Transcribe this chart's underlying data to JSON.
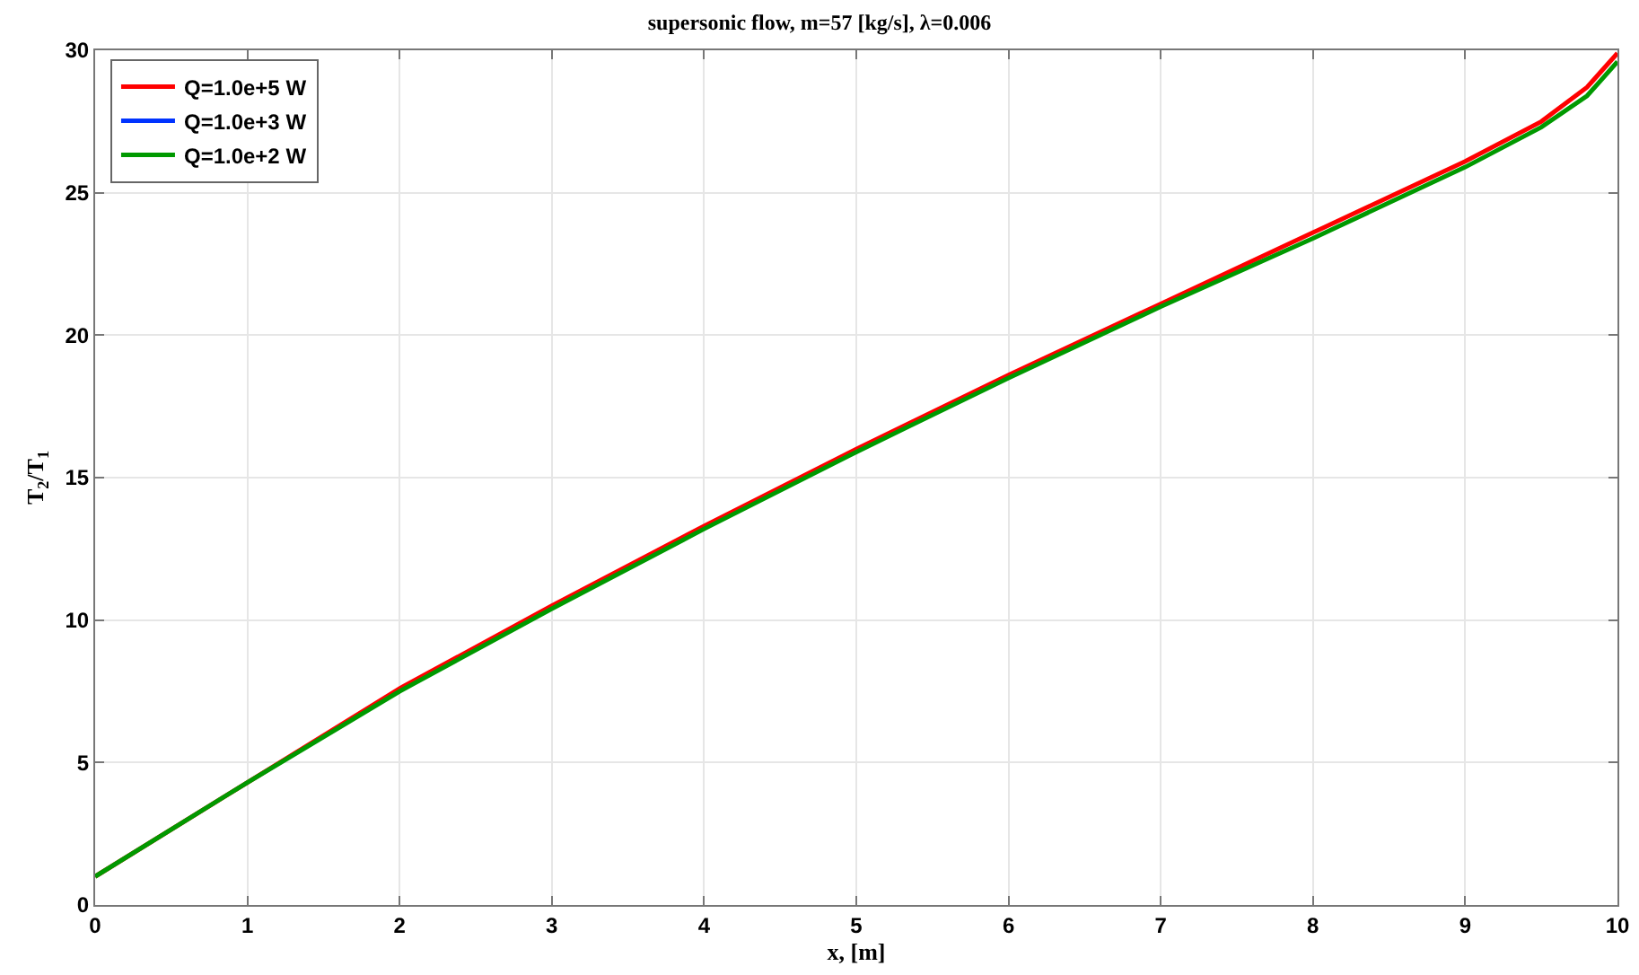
{
  "chart_data": {
    "type": "line",
    "title": "supersonic flow, m=57 [kg/s], λ=0.006",
    "xlabel": "x, [m]",
    "ylabel": "T$_{2}$/T$_{1}$",
    "x": [
      0,
      1,
      2,
      3,
      4,
      5,
      6,
      7,
      8,
      9,
      9.5,
      9.8,
      10
    ],
    "series": [
      {
        "name": "Q=1.0e+5 W",
        "color": "#ff0000",
        "values": [
          1.0,
          4.3,
          7.6,
          10.5,
          13.3,
          16.0,
          18.6,
          21.1,
          23.6,
          26.1,
          27.5,
          28.7,
          29.9
        ]
      },
      {
        "name": "Q=1.0e+3 W",
        "color": "#0033ff",
        "values": [
          null,
          null,
          null,
          null,
          null,
          null,
          null,
          null,
          null,
          null,
          null,
          null,
          null
        ]
      },
      {
        "name": "Q=1.0e+2 W",
        "color": "#009900",
        "values": [
          1.0,
          4.3,
          7.5,
          10.4,
          13.2,
          15.9,
          18.5,
          21.0,
          23.4,
          25.9,
          27.3,
          28.4,
          29.6
        ]
      }
    ],
    "xlim": [
      0,
      10
    ],
    "xticks": [
      0,
      1,
      2,
      3,
      4,
      5,
      6,
      7,
      8,
      9,
      10
    ],
    "ylim": [
      0,
      30
    ],
    "yticks": [
      0,
      5,
      10,
      15,
      20,
      25,
      30
    ],
    "grid": true,
    "legend": "top left",
    "line_style": "solid",
    "marker": "none"
  }
}
